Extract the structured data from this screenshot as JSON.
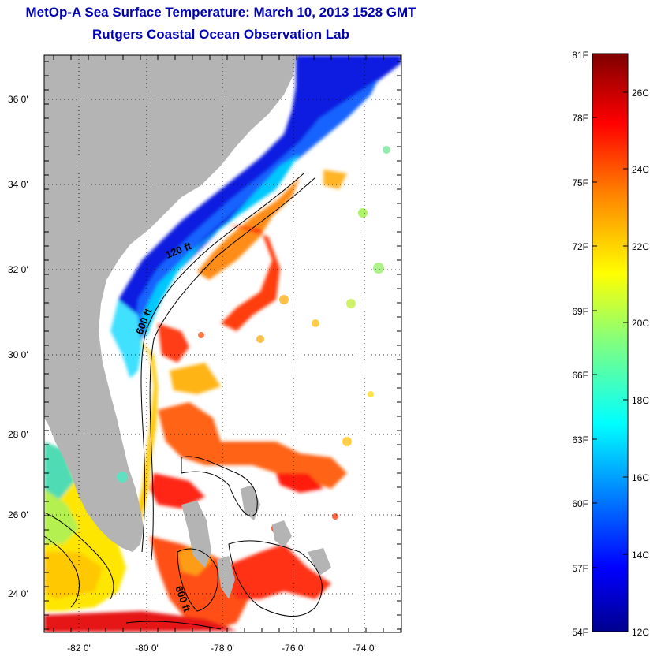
{
  "header": {
    "title": "MetOp-A Sea Surface Temperature:  March 10, 2013 1528 GMT",
    "subtitle": "Rutgers Coastal Ocean Observation Lab"
  },
  "map": {
    "lat_labels": [
      "36 0'",
      "34 0'",
      "32 0'",
      "30 0'",
      "28 0'",
      "26 0'",
      "24 0'"
    ],
    "lon_labels": [
      "-82 0'",
      "-80 0'",
      "-78 0'",
      "-76 0'",
      "-74 0'"
    ],
    "contour_labels": [
      "120 ft",
      "600 ft",
      "600 ft"
    ],
    "colors": {
      "land": "#b4b4b4",
      "ocean_nodata": "#ffffff"
    }
  },
  "colorbar": {
    "fahrenheit_labels": [
      "81F",
      "78F",
      "75F",
      "72F",
      "69F",
      "66F",
      "63F",
      "60F",
      "57F",
      "54F"
    ],
    "celsius_labels": [
      "26C",
      "24C",
      "22C",
      "20C",
      "18C",
      "16C",
      "14C",
      "12C"
    ],
    "colors": [
      "#7f0000",
      "#ff0000",
      "#ff8000",
      "#ffff00",
      "#80ff80",
      "#00ffff",
      "#0080ff",
      "#0000ff",
      "#00008f"
    ]
  }
}
